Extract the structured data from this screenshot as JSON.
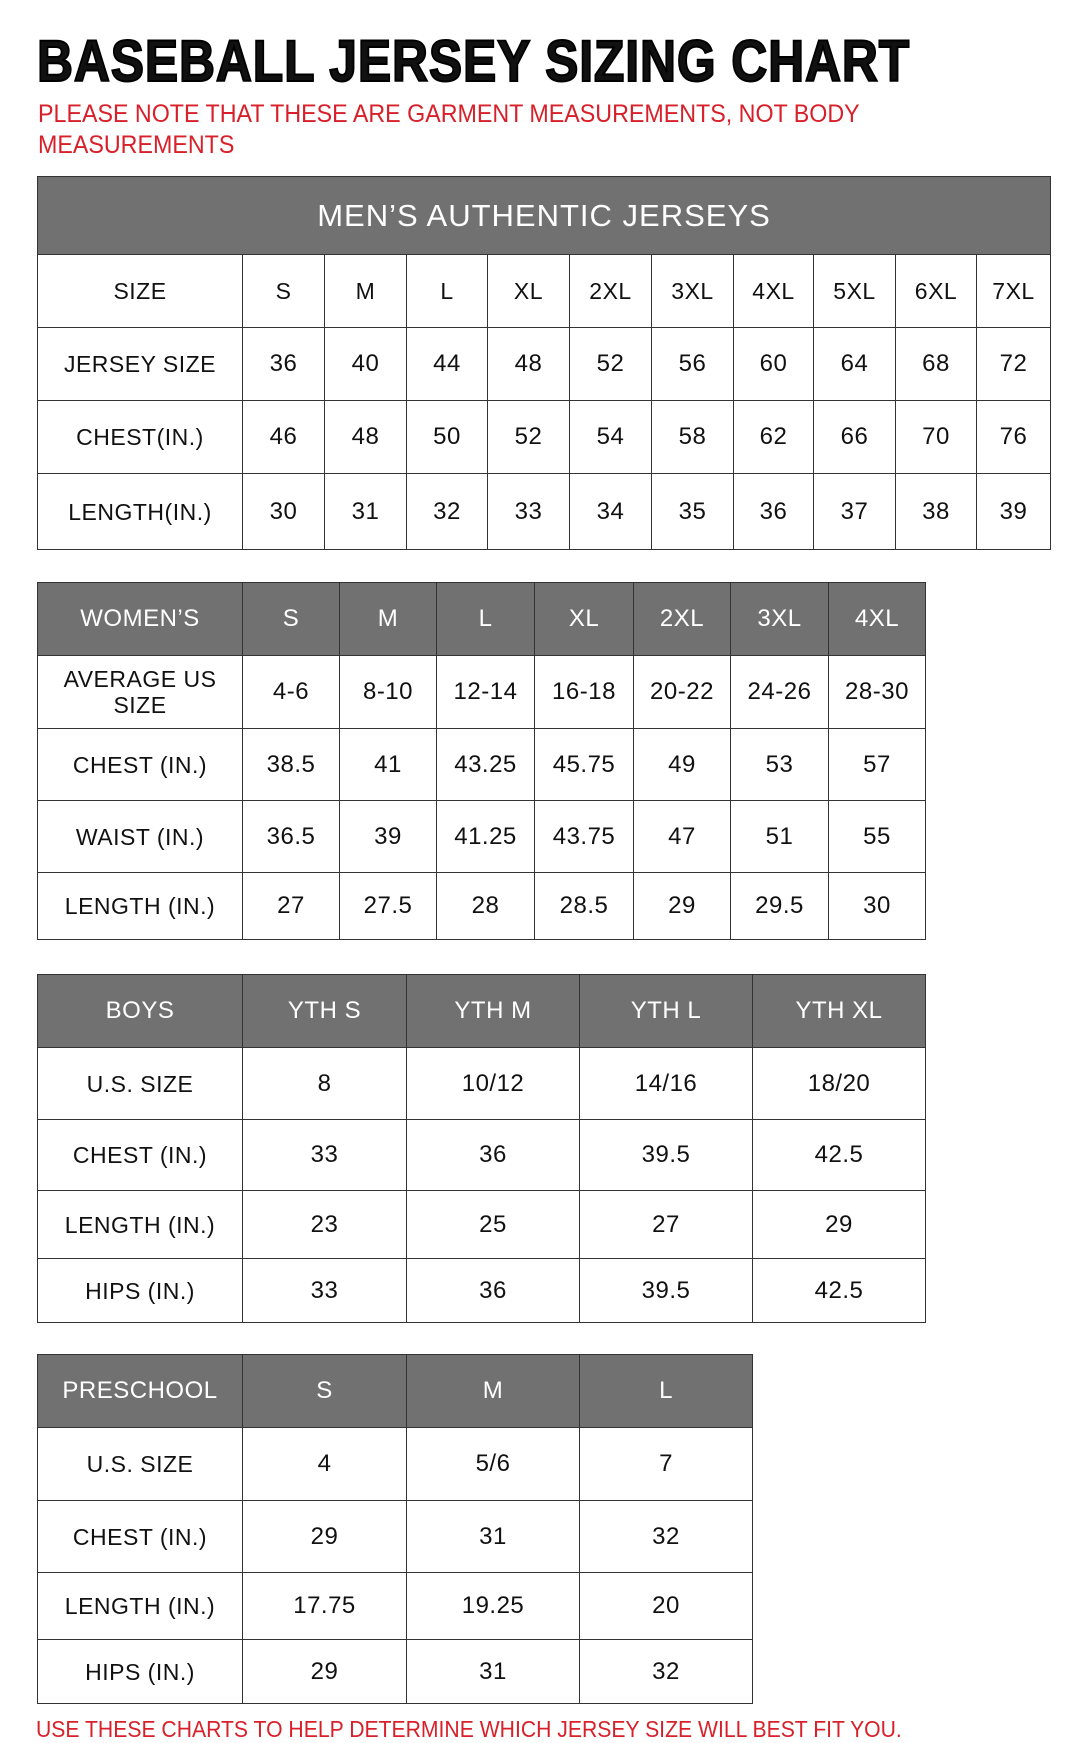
{
  "title": "BASEBALL JERSEY SIZING CHART",
  "note_line1": "PLEASE NOTE THAT THESE ARE GARMENT MEASUREMENTS, NOT BODY",
  "note_line2": "MEASUREMENTS",
  "footer": "USE THESE CHARTS TO HELP DETERMINE WHICH JERSEY SIZE WILL BEST FIT YOU.",
  "colors": {
    "header_gray": "#717171",
    "note_red": "#d8202a"
  },
  "tables": [
    {
      "caption": "MEN’S AUTHENTIC JERSEYS",
      "header": [
        "SIZE",
        "S",
        "M",
        "L",
        "XL",
        "2XL",
        "3XL",
        "4XL",
        "5XL",
        "6XL",
        "7XL"
      ],
      "rows": [
        [
          "JERSEY SIZE",
          "36",
          "40",
          "44",
          "48",
          "52",
          "56",
          "60",
          "64",
          "68",
          "72"
        ],
        [
          "CHEST(IN.)",
          "46",
          "48",
          "50",
          "52",
          "54",
          "58",
          "62",
          "66",
          "70",
          "76"
        ],
        [
          "LENGTH(IN.)",
          "30",
          "31",
          "32",
          "33",
          "34",
          "35",
          "36",
          "37",
          "38",
          "39"
        ]
      ]
    },
    {
      "header": [
        "WOMEN’S",
        "S",
        "M",
        "L",
        "XL",
        "2XL",
        "3XL",
        "4XL"
      ],
      "rows": [
        [
          "AVERAGE US SIZE",
          "4-6",
          "8-10",
          "12-14",
          "16-18",
          "20-22",
          "24-26",
          "28-30"
        ],
        [
          "CHEST (IN.)",
          "38.5",
          "41",
          "43.25",
          "45.75",
          "49",
          "53",
          "57"
        ],
        [
          "WAIST (IN.)",
          "36.5",
          "39",
          "41.25",
          "43.75",
          "47",
          "51",
          "55"
        ],
        [
          "LENGTH (IN.)",
          "27",
          "27.5",
          "28",
          "28.5",
          "29",
          "29.5",
          "30"
        ]
      ]
    },
    {
      "header": [
        "BOYS",
        "YTH S",
        "YTH M",
        "YTH L",
        "YTH XL"
      ],
      "rows": [
        [
          "U.S. SIZE",
          "8",
          "10/12",
          "14/16",
          "18/20"
        ],
        [
          "CHEST (IN.)",
          "33",
          "36",
          "39.5",
          "42.5"
        ],
        [
          "LENGTH (IN.)",
          "23",
          "25",
          "27",
          "29"
        ],
        [
          "HIPS (IN.)",
          "33",
          "36",
          "39.5",
          "42.5"
        ]
      ]
    },
    {
      "header": [
        "PRESCHOOL",
        "S",
        "M",
        "L"
      ],
      "rows": [
        [
          "U.S. SIZE",
          "4",
          "5/6",
          "7"
        ],
        [
          "CHEST (IN.)",
          "29",
          "31",
          "32"
        ],
        [
          "LENGTH (IN.)",
          "17.75",
          "19.25",
          "20"
        ],
        [
          "HIPS (IN.)",
          "29",
          "31",
          "32"
        ]
      ]
    }
  ]
}
